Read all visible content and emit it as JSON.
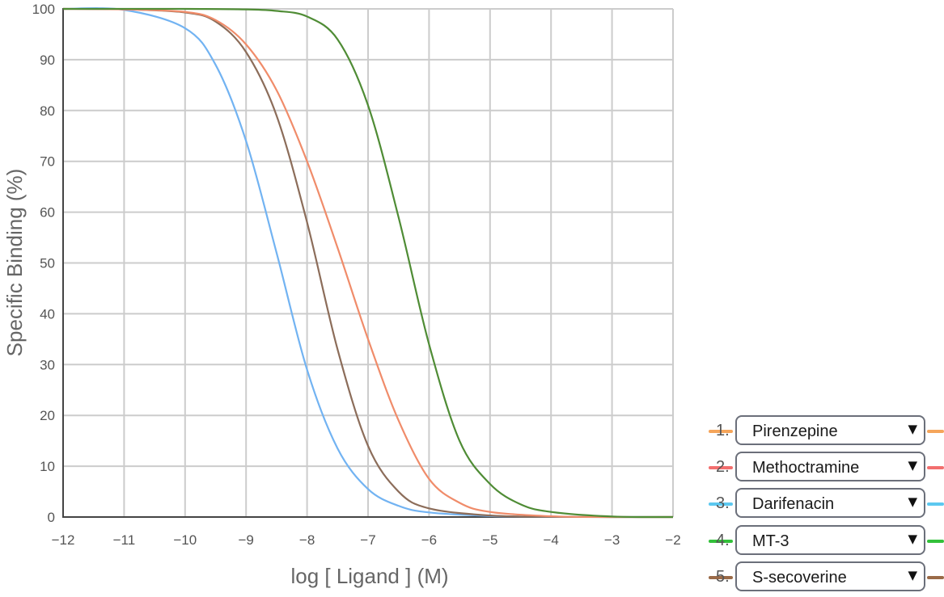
{
  "chart_data": {
    "type": "line",
    "xlabel": "log [ Ligand ] (M)",
    "ylabel": "Specific Binding (%)",
    "xlim": [
      -12,
      -2
    ],
    "ylim": [
      0,
      100
    ],
    "xticks": [
      -12,
      -11,
      -10,
      -9,
      -8,
      -7,
      -6,
      -5,
      -4,
      -3,
      -2
    ],
    "yticks": [
      0,
      10,
      20,
      30,
      40,
      50,
      60,
      70,
      80,
      90,
      100
    ],
    "xtick_labels": [
      "−12",
      "−11",
      "−10",
      "−9",
      "−8",
      "−7",
      "−6",
      "−5",
      "−4",
      "−3",
      "−2"
    ],
    "ytick_labels": [
      "0",
      "10",
      "20",
      "30",
      "40",
      "50",
      "60",
      "70",
      "80",
      "90",
      "100"
    ],
    "grid": true,
    "series": [
      {
        "name": "Darifenacin",
        "color": "#72b3f2",
        "x": [
          -12,
          -11,
          -10,
          -9.5,
          -9,
          -8.5,
          -8,
          -7.5,
          -7,
          -6.5,
          -6,
          -5,
          -4,
          -3,
          -2
        ],
        "y": [
          100,
          99.8,
          96.2,
          89,
          74,
          52,
          29,
          13.5,
          5.5,
          2.2,
          0.9,
          0.2,
          0.05,
          0,
          0
        ]
      },
      {
        "name": "S-secoverine",
        "color": "#8c6d5a",
        "x": [
          -12,
          -11,
          -10,
          -9.5,
          -9,
          -8.5,
          -8,
          -7.5,
          -7,
          -6.5,
          -6,
          -5,
          -4,
          -3,
          -2
        ],
        "y": [
          100,
          99.9,
          99.3,
          97.5,
          91.5,
          79,
          58,
          33,
          14,
          5,
          1.7,
          0.3,
          0.05,
          0,
          0
        ]
      },
      {
        "name": "Methoctramine",
        "color": "#f08c6a",
        "x": [
          -12,
          -11,
          -10,
          -9.5,
          -9,
          -8.5,
          -8,
          -7.5,
          -7,
          -6.5,
          -6,
          -5.5,
          -5,
          -4,
          -3,
          -2
        ],
        "y": [
          100,
          99.9,
          99.4,
          97.8,
          93,
          84,
          70,
          53,
          35,
          19,
          7.5,
          2.8,
          1,
          0.15,
          0,
          0
        ]
      },
      {
        "name": "MT-3",
        "color": "#4f8c35",
        "x": [
          -12,
          -10,
          -9,
          -8.5,
          -8,
          -7.5,
          -7,
          -6.5,
          -6,
          -5.5,
          -5,
          -4.5,
          -4,
          -3,
          -2
        ],
        "y": [
          100,
          100,
          99.9,
          99.6,
          98.5,
          94,
          81,
          59,
          34,
          15,
          6.5,
          2.5,
          1,
          0.1,
          0
        ]
      }
    ]
  },
  "legend": [
    {
      "num": "1.",
      "label": "Pirenzepine",
      "color": "#f5a55a"
    },
    {
      "num": "2.",
      "label": "Methoctramine",
      "color": "#f26e6e"
    },
    {
      "num": "3.",
      "label": "Darifenacin",
      "color": "#5cc8f0"
    },
    {
      "num": "4.",
      "label": "MT-3",
      "color": "#33c13a"
    },
    {
      "num": "5.",
      "label": "S-secoverine",
      "color": "#9a6a48"
    }
  ],
  "caret": "▼"
}
